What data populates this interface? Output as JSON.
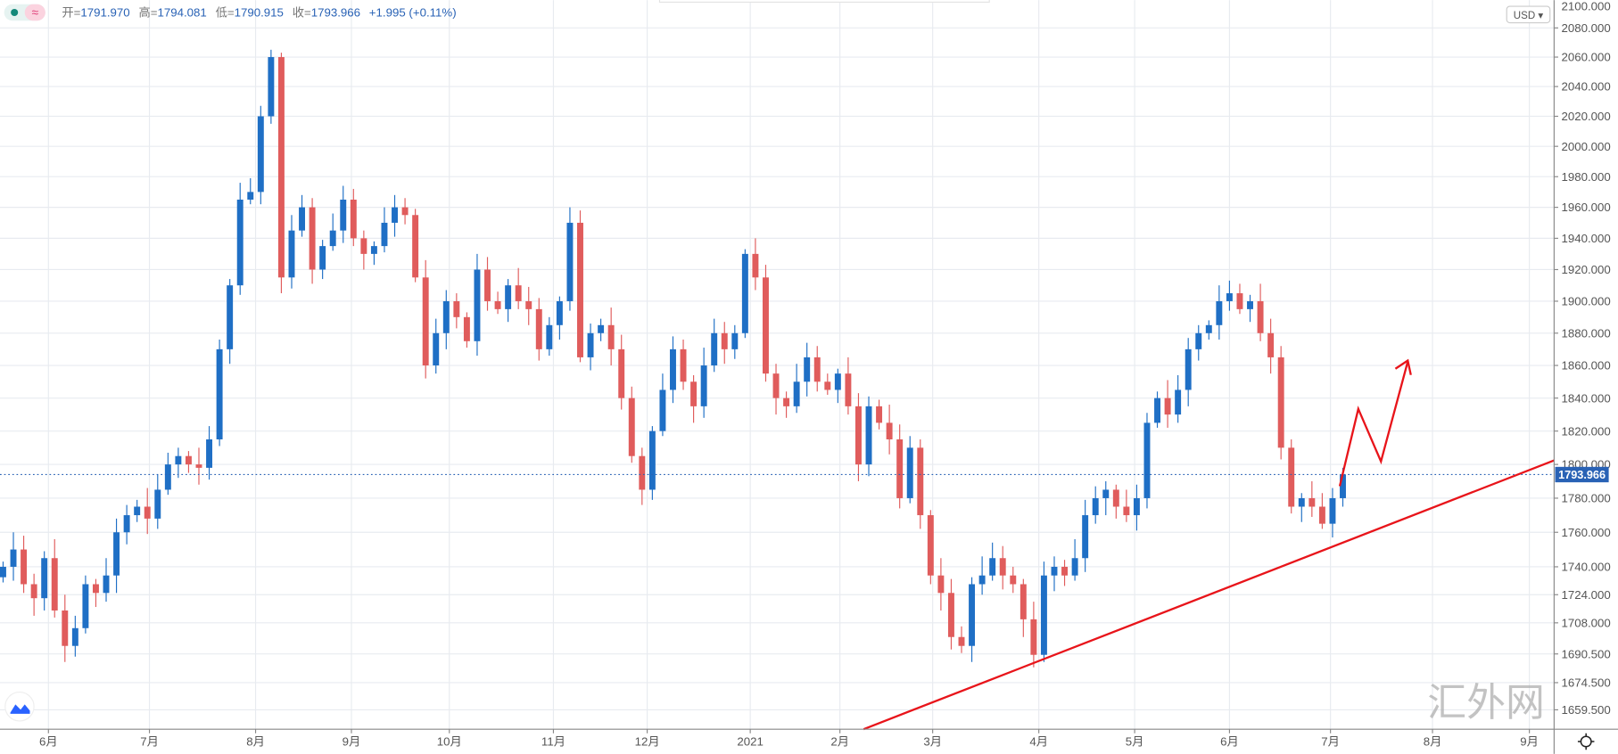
{
  "header": {
    "open_label": "开=",
    "open": "1791.970",
    "high_label": "高=",
    "high": "1794.081",
    "low_label": "低=",
    "low": "1790.915",
    "close_label": "收=",
    "close": "1793.966",
    "change": "+1.995 (+0.11%)",
    "indicator_symbol": "≈"
  },
  "currency_button": "USD ▾",
  "current_price_label": "1793.966",
  "watermark": "汇外网",
  "colors": {
    "up": "#1f6fc5",
    "down": "#e05c5c",
    "trendline": "#e8141a",
    "grid": "#e8ebf0"
  },
  "chart_data": {
    "type": "candlestick",
    "title": "",
    "price_scale": "log",
    "current_price": 1793.966,
    "y_ticks": [
      "2100.000",
      "2080.000",
      "2060.000",
      "2040.000",
      "2020.000",
      "2000.000",
      "1980.000",
      "1960.000",
      "1940.000",
      "1920.000",
      "1900.000",
      "1880.000",
      "1860.000",
      "1840.000",
      "1820.000",
      "1800.000",
      "1780.000",
      "1760.000",
      "1740.000",
      "1724.000",
      "1708.000",
      "1690.500",
      "1674.500",
      "1659.500"
    ],
    "x_ticks": [
      "6月",
      "7月",
      "8月",
      "9月",
      "10月",
      "11月",
      "12月",
      "2021",
      "2月",
      "3月",
      "4月",
      "5月",
      "6月",
      "7月",
      "8月",
      "9月"
    ],
    "closes": [
      1740,
      1750,
      1730,
      1722,
      1745,
      1715,
      1695,
      1705,
      1730,
      1725,
      1735,
      1760,
      1770,
      1775,
      1768,
      1785,
      1800,
      1805,
      1800,
      1798,
      1815,
      1870,
      1910,
      1965,
      1970,
      2020,
      2060,
      1915,
      1945,
      1960,
      1920,
      1935,
      1945,
      1965,
      1940,
      1930,
      1935,
      1950,
      1960,
      1955,
      1915,
      1860,
      1880,
      1900,
      1890,
      1875,
      1920,
      1900,
      1895,
      1910,
      1900,
      1895,
      1870,
      1885,
      1900,
      1950,
      1865,
      1880,
      1885,
      1870,
      1840,
      1805,
      1785,
      1820,
      1845,
      1870,
      1850,
      1835,
      1860,
      1880,
      1870,
      1880,
      1930,
      1915,
      1855,
      1840,
      1835,
      1850,
      1865,
      1850,
      1845,
      1855,
      1835,
      1800,
      1835,
      1825,
      1815,
      1780,
      1810,
      1770,
      1735,
      1725,
      1700,
      1695,
      1730,
      1735,
      1745,
      1735,
      1730,
      1710,
      1690,
      1735,
      1740,
      1735,
      1745,
      1770,
      1780,
      1785,
      1775,
      1770,
      1780,
      1825,
      1840,
      1830,
      1845,
      1870,
      1880,
      1885,
      1900,
      1905,
      1895,
      1900,
      1880,
      1865,
      1810,
      1775,
      1780,
      1775,
      1765,
      1780,
      1794
    ],
    "annotations": [
      "ascending trendline",
      "projected zigzag arrow up"
    ]
  }
}
